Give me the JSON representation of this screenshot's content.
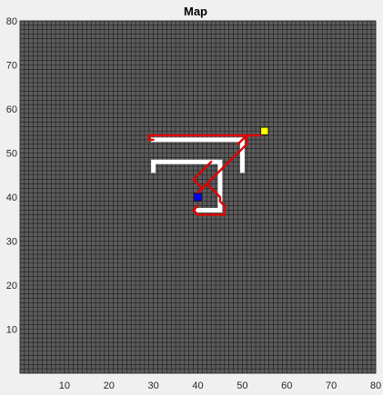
{
  "chart_data": {
    "type": "grid-map",
    "title": "Map",
    "xlabel": "",
    "ylabel": "",
    "xlim": [
      0,
      80
    ],
    "ylim": [
      0,
      80
    ],
    "xticks": [
      10,
      20,
      30,
      40,
      50,
      60,
      70,
      80
    ],
    "yticks": [
      10,
      20,
      30,
      40,
      50,
      60,
      70,
      80
    ],
    "grid": true,
    "grid_spacing": 1,
    "colors": {
      "figure_bg": "#f0f0f0",
      "cell_fill": "#5c5c5c",
      "grid_line": "#1a1a1a",
      "obstacle": "#ffffff",
      "path": "#e00000",
      "start": "#0000ff",
      "goal": "#ffff00",
      "text": "#262626"
    },
    "obstacles": [
      [
        [
          30,
          53
        ],
        [
          50,
          53
        ],
        [
          50,
          46
        ]
      ],
      [
        [
          30,
          46
        ],
        [
          30,
          48
        ],
        [
          45,
          48
        ],
        [
          45,
          37
        ],
        [
          40,
          37
        ]
      ]
    ],
    "path": [
      [
        40,
        41
      ],
      [
        41,
        42
      ],
      [
        42,
        43
      ],
      [
        43,
        44
      ],
      [
        44,
        45
      ],
      [
        45,
        46
      ],
      [
        46,
        47
      ],
      [
        47,
        48
      ],
      [
        48,
        49
      ],
      [
        49,
        50
      ],
      [
        50,
        51
      ],
      [
        51,
        52
      ],
      [
        51,
        53
      ],
      [
        52,
        53
      ],
      [
        53,
        54
      ],
      [
        54,
        54
      ],
      [
        55,
        55
      ],
      [
        43,
        43
      ],
      [
        44,
        44
      ],
      [
        45,
        45
      ],
      [
        46,
        46
      ],
      [
        47,
        47
      ],
      [
        48,
        48
      ],
      [
        49,
        49
      ],
      [
        50,
        50
      ],
      [
        51,
        51
      ],
      [
        52,
        52
      ],
      [
        53,
        53
      ],
      [
        54,
        54
      ]
    ],
    "path_segments": [
      [
        [
          40,
          41
        ],
        [
          42,
          43
        ],
        [
          43,
          44
        ],
        [
          44,
          45
        ],
        [
          45,
          46
        ],
        [
          46,
          47
        ],
        [
          47,
          48
        ],
        [
          48,
          49
        ],
        [
          49,
          50
        ],
        [
          50,
          51
        ],
        [
          51,
          52
        ],
        [
          51,
          54
        ],
        [
          40,
          54
        ],
        [
          30,
          54
        ],
        [
          29,
          54
        ],
        [
          29,
          53
        ],
        [
          30,
          53
        ]
      ],
      [
        [
          40,
          41
        ],
        [
          42,
          43
        ],
        [
          43,
          42
        ],
        [
          44,
          41
        ],
        [
          45,
          40
        ],
        [
          45,
          39
        ],
        [
          46,
          38
        ],
        [
          46,
          37
        ],
        [
          46,
          36
        ],
        [
          40,
          36
        ],
        [
          39,
          37
        ],
        [
          40,
          38
        ]
      ],
      [
        [
          41,
          42
        ],
        [
          40,
          43
        ],
        [
          39,
          44
        ],
        [
          40,
          45
        ],
        [
          41,
          46
        ],
        [
          42,
          47
        ],
        [
          43,
          48
        ]
      ],
      [
        [
          49,
          52
        ],
        [
          50,
          53
        ],
        [
          51,
          54
        ],
        [
          52,
          54
        ],
        [
          53,
          54
        ],
        [
          54,
          54
        ],
        [
          55,
          55
        ]
      ]
    ],
    "start": [
      40,
      40
    ],
    "goal": [
      55,
      55
    ]
  }
}
